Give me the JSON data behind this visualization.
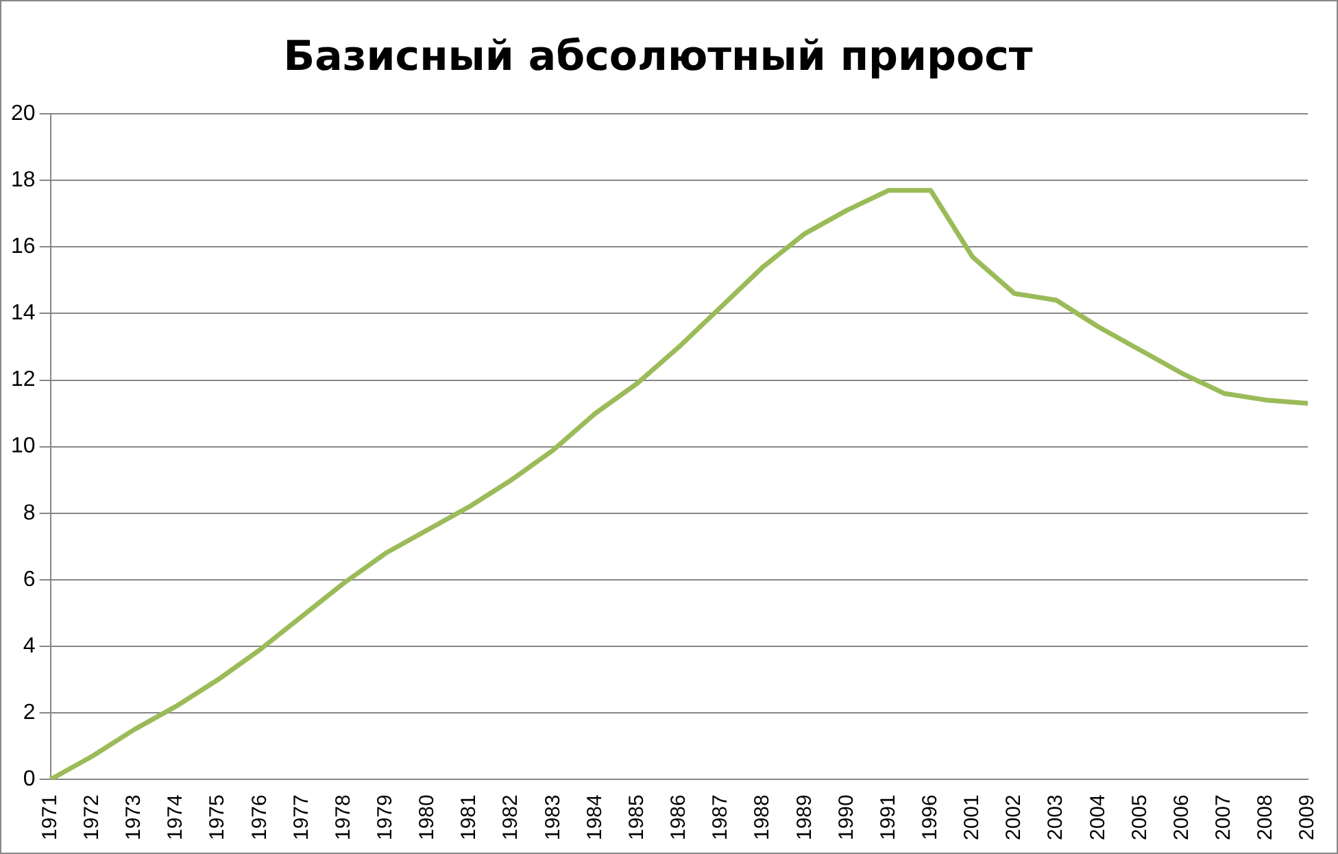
{
  "chart_data": {
    "type": "line",
    "title": "Базисный абсолютный прирост",
    "categories": [
      "1971",
      "1972",
      "1973",
      "1974",
      "1975",
      "1976",
      "1977",
      "1978",
      "1979",
      "1980",
      "1981",
      "1982",
      "1983",
      "1984",
      "1985",
      "1986",
      "1987",
      "1988",
      "1989",
      "1990",
      "1991",
      "1996",
      "2001",
      "2002",
      "2003",
      "2004",
      "2005",
      "2006",
      "2007",
      "2008",
      "2009"
    ],
    "series": [
      {
        "color": "#9bbb59",
        "values": [
          0,
          0.7,
          1.5,
          2.2,
          3.0,
          3.9,
          4.9,
          5.9,
          6.8,
          7.5,
          8.2,
          9.0,
          9.9,
          11.0,
          11.9,
          13.0,
          14.2,
          15.4,
          16.4,
          17.1,
          17.7,
          17.7,
          15.7,
          14.6,
          14.4,
          13.6,
          12.9,
          12.2,
          11.6,
          11.4,
          11.3
        ]
      }
    ],
    "ylim": [
      0,
      20
    ],
    "yticks": [
      0,
      2,
      4,
      6,
      8,
      10,
      12,
      14,
      16,
      18,
      20
    ],
    "grid": "y",
    "legend": false,
    "marker": "none",
    "line_style": "solid"
  }
}
